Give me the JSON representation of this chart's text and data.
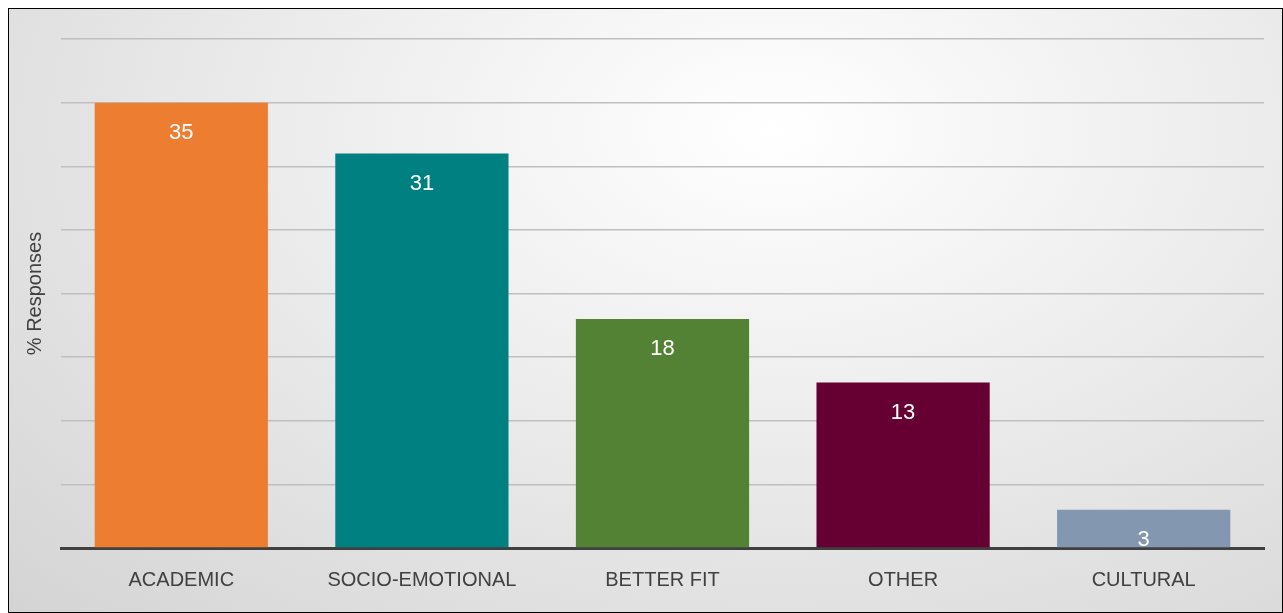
{
  "chart_data": {
    "type": "bar",
    "ylabel": "% Responses",
    "categories": [
      "ACADEMIC",
      "SOCIO-EMOTIONAL",
      "BETTER FIT",
      "OTHER",
      "CULTURAL"
    ],
    "values": [
      35,
      31,
      18,
      13,
      3
    ],
    "colors": [
      "#ed7d31",
      "#008080",
      "#548235",
      "#660033",
      "#8497b0"
    ],
    "ylim": [
      0,
      40
    ],
    "yticks": [
      {
        "value": 0,
        "label": null
      },
      {
        "value": 5,
        "label": null
      },
      {
        "value": 10,
        "label": null
      },
      {
        "value": 15,
        "label": null
      },
      {
        "value": 20,
        "label": null
      },
      {
        "value": 25,
        "label": null
      },
      {
        "value": 30,
        "label": null
      },
      {
        "value": 35,
        "label": null
      },
      {
        "value": 40,
        "label": null
      }
    ],
    "tick_labels": "x",
    "grid": "y",
    "data_labels": true
  }
}
